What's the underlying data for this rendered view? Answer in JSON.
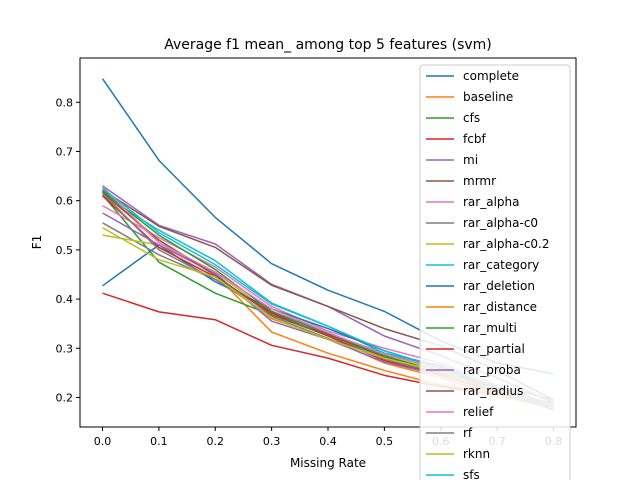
{
  "chart_data": {
    "type": "line",
    "title": "Average f1 mean_ among top 5 features (svm)",
    "xlabel": "Missing Rate",
    "ylabel": "F1",
    "xlim": [
      -0.04,
      0.84
    ],
    "ylim": [
      0.14,
      0.89
    ],
    "xticks": [
      "0.0",
      "0.1",
      "0.2",
      "0.3",
      "0.4",
      "0.5",
      "0.6",
      "0.7",
      "0.8"
    ],
    "yticks": [
      "0.2",
      "0.3",
      "0.4",
      "0.5",
      "0.6",
      "0.7",
      "0.8"
    ],
    "grid": false,
    "legend_position": "upper right",
    "x": [
      0.0,
      0.1,
      0.2,
      0.3,
      0.4,
      0.5,
      0.6,
      0.7,
      0.8
    ],
    "series": [
      {
        "name": "complete",
        "color": "#1f77b4",
        "values": [
          0.848,
          0.682,
          0.566,
          0.472,
          0.418,
          0.375,
          0.315,
          0.27,
          0.248
        ]
      },
      {
        "name": "baseline",
        "color": "#ff7f0e",
        "values": [
          0.62,
          0.515,
          0.45,
          0.333,
          0.29,
          0.255,
          0.225,
          0.21,
          0.19
        ]
      },
      {
        "name": "cfs",
        "color": "#2ca02c",
        "values": [
          0.612,
          0.475,
          0.412,
          0.368,
          0.325,
          0.278,
          0.248,
          0.225,
          0.195
        ]
      },
      {
        "name": "fcbf",
        "color": "#d62728",
        "values": [
          0.412,
          0.374,
          0.358,
          0.306,
          0.28,
          0.245,
          0.222,
          0.205,
          0.188
        ]
      },
      {
        "name": "mi",
        "color": "#9467bd",
        "values": [
          0.63,
          0.55,
          0.512,
          0.43,
          0.385,
          0.325,
          0.285,
          0.24,
          0.19
        ]
      },
      {
        "name": "mrmr",
        "color": "#8c564b",
        "values": [
          0.622,
          0.548,
          0.505,
          0.428,
          0.385,
          0.34,
          0.305,
          0.255,
          0.195
        ]
      },
      {
        "name": "rar_alpha",
        "color": "#e377c2",
        "values": [
          0.59,
          0.525,
          0.465,
          0.385,
          0.335,
          0.3,
          0.27,
          0.225,
          0.185
        ]
      },
      {
        "name": "rar_alpha-c0",
        "color": "#7f7f7f",
        "values": [
          0.555,
          0.49,
          0.44,
          0.375,
          0.33,
          0.29,
          0.265,
          0.22,
          0.182
        ]
      },
      {
        "name": "rar_alpha-c0.2",
        "color": "#bcbd22",
        "values": [
          0.53,
          0.51,
          0.455,
          0.37,
          0.325,
          0.285,
          0.255,
          0.218,
          0.18
        ]
      },
      {
        "name": "rar_category",
        "color": "#17becf",
        "values": [
          0.612,
          0.54,
          0.478,
          0.392,
          0.345,
          0.29,
          0.262,
          0.222,
          0.178
        ]
      },
      {
        "name": "rar_deletion",
        "color": "#1f77b4",
        "values": [
          0.427,
          0.51,
          0.435,
          0.38,
          0.34,
          0.295,
          0.26,
          0.215,
          0.175
        ]
      },
      {
        "name": "rar_distance",
        "color": "#ff7f0e",
        "values": [
          0.615,
          0.52,
          0.45,
          0.36,
          0.32,
          0.27,
          0.24,
          0.205,
          0.178
        ]
      },
      {
        "name": "rar_multi",
        "color": "#2ca02c",
        "values": [
          0.62,
          0.53,
          0.46,
          0.375,
          0.33,
          0.285,
          0.25,
          0.22,
          0.185
        ]
      },
      {
        "name": "rar_partial",
        "color": "#d62728",
        "values": [
          0.61,
          0.505,
          0.445,
          0.372,
          0.325,
          0.275,
          0.245,
          0.212,
          0.18
        ]
      },
      {
        "name": "rar_proba",
        "color": "#9467bd",
        "values": [
          0.575,
          0.51,
          0.452,
          0.355,
          0.318,
          0.272,
          0.245,
          0.21,
          0.178
        ]
      },
      {
        "name": "rar_radius",
        "color": "#8c564b",
        "values": [
          0.617,
          0.52,
          0.448,
          0.368,
          0.328,
          0.282,
          0.25,
          0.218,
          0.182
        ]
      },
      {
        "name": "relief",
        "color": "#e377c2",
        "values": [
          0.628,
          0.515,
          0.455,
          0.38,
          0.332,
          0.288,
          0.258,
          0.222,
          0.185
        ]
      },
      {
        "name": "rf",
        "color": "#7f7f7f",
        "values": [
          0.615,
          0.5,
          0.44,
          0.365,
          0.32,
          0.278,
          0.25,
          0.215,
          0.18
        ]
      },
      {
        "name": "rknn",
        "color": "#bcbd22",
        "values": [
          0.545,
          0.48,
          0.445,
          0.362,
          0.318,
          0.28,
          0.252,
          0.215,
          0.178
        ]
      },
      {
        "name": "sfs",
        "color": "#17becf",
        "values": [
          0.625,
          0.535,
          0.47,
          0.39,
          0.345,
          0.295,
          0.26,
          0.22,
          0.182
        ]
      }
    ]
  }
}
